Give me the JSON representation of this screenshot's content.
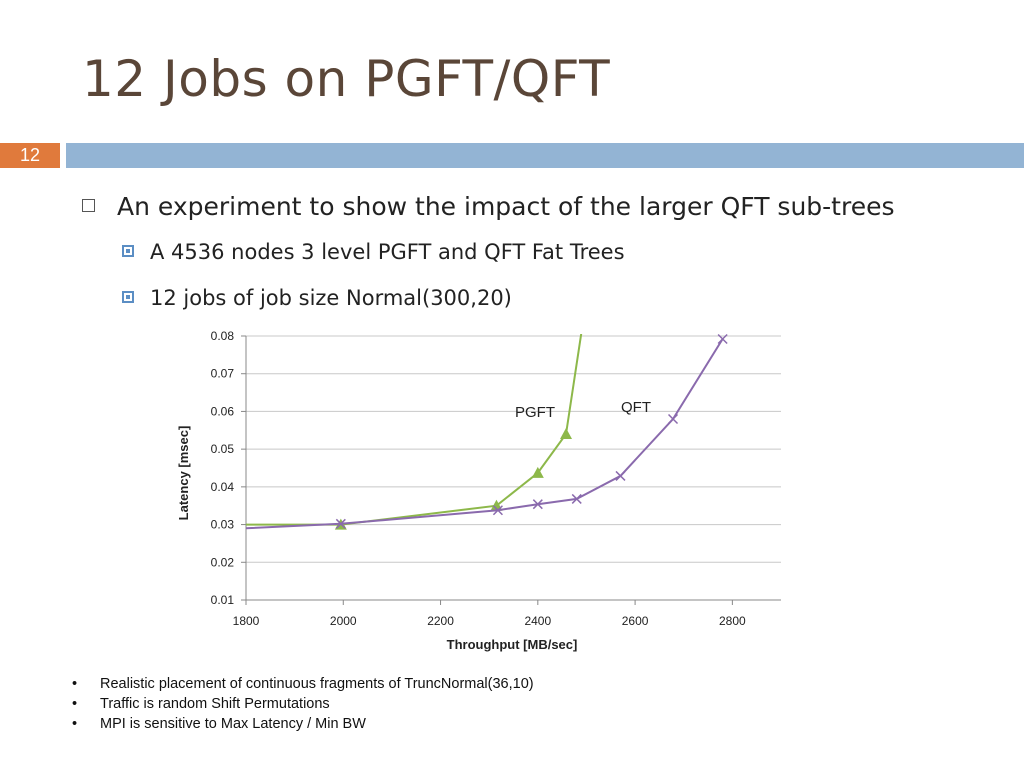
{
  "slide": {
    "title": "12 Jobs on PGFT/QFT",
    "slide_number": "12",
    "bullet_main": "An experiment to show the impact of the larger QFT sub-trees",
    "sub_bullets": [
      "A 4536 nodes 3 level PGFT and QFT Fat Trees",
      "12 jobs of job size Normal(300,20)"
    ],
    "notes": [
      "Realistic placement of continuous fragments of TruncNormal(36,10)",
      "Traffic is random Shift Permutations",
      "MPI is sensitive to Max Latency / Min BW"
    ],
    "note_bullet": "•",
    "colors": {
      "title": "#5a4638",
      "badge": "#e07a3c",
      "bar": "#93b4d4",
      "pgft": "#8db84a",
      "qft": "#8a6aad"
    }
  },
  "chart_data": {
    "type": "line",
    "xlabel": "Throughput [MB/sec]",
    "ylabel": "Latency [msec]",
    "xlim": [
      1800,
      2900
    ],
    "ylim": [
      0.01,
      0.08
    ],
    "xticks": [
      1800,
      2000,
      2200,
      2400,
      2600,
      2800
    ],
    "yticks": [
      "0.01",
      "0.02",
      "0.03",
      "0.04",
      "0.05",
      "0.06",
      "0.07",
      "0.08"
    ],
    "grid": "horizontal",
    "series": [
      {
        "name": "PGFT",
        "color": "#8db84a",
        "marker": "triangle",
        "points": [
          [
            1800,
            0.03
          ],
          [
            1995,
            0.03
          ],
          [
            2315,
            0.035
          ],
          [
            2400,
            0.0437
          ],
          [
            2458,
            0.054
          ],
          [
            2492,
            0.083
          ]
        ],
        "marked": [
          1,
          2,
          3,
          4
        ]
      },
      {
        "name": "QFT",
        "color": "#8a6aad",
        "marker": "x",
        "points": [
          [
            1800,
            0.029
          ],
          [
            1995,
            0.0302
          ],
          [
            2318,
            0.0338
          ],
          [
            2400,
            0.0354
          ],
          [
            2480,
            0.0368
          ],
          [
            2570,
            0.0429
          ],
          [
            2678,
            0.058
          ],
          [
            2780,
            0.0792
          ]
        ],
        "marked": [
          1,
          2,
          3,
          4,
          5,
          6,
          7
        ]
      }
    ]
  }
}
